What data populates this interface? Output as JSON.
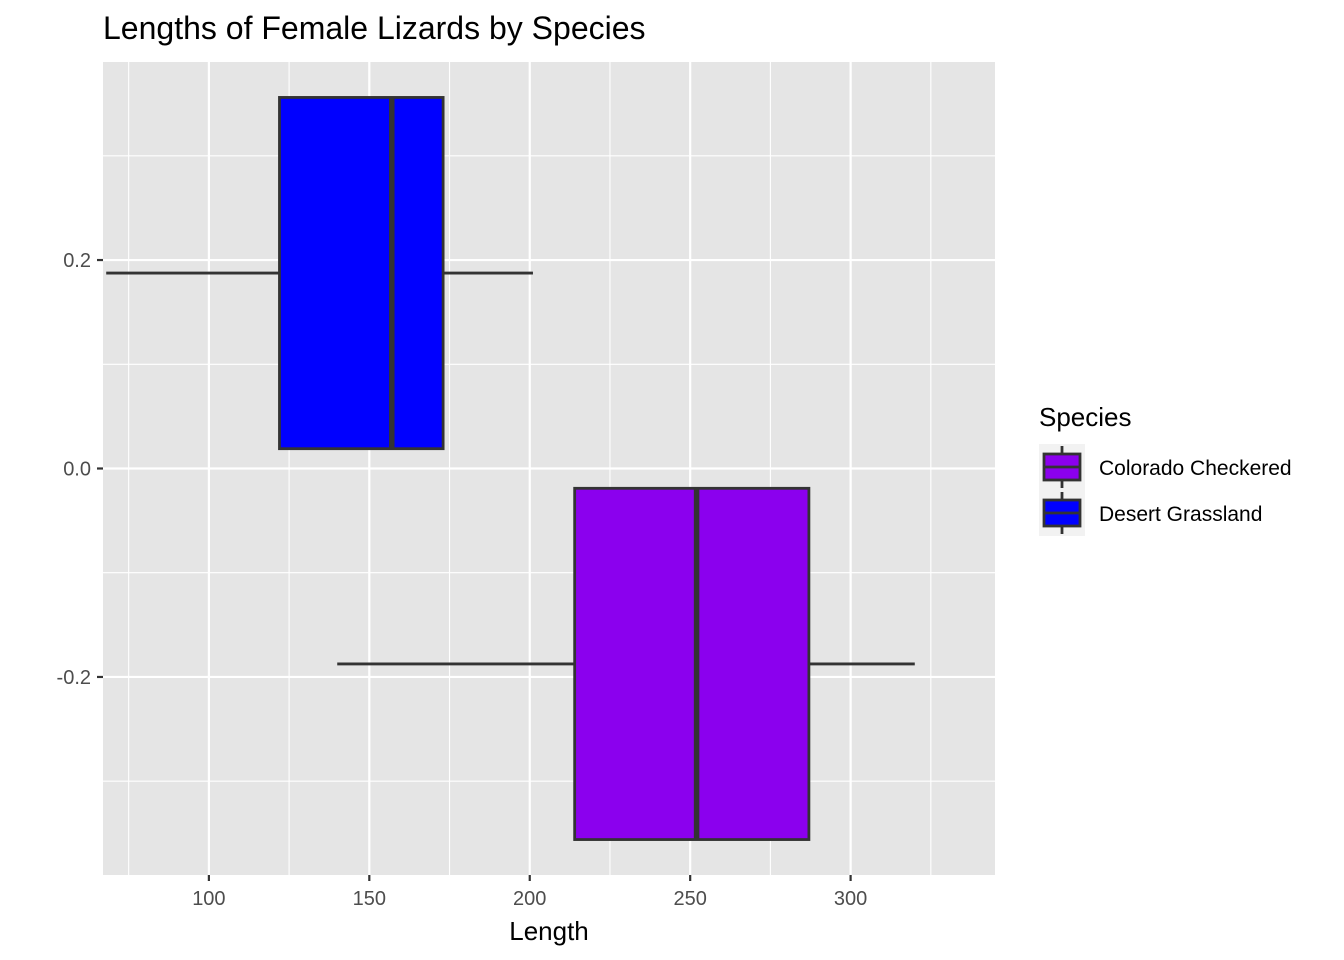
{
  "chart_data": {
    "type": "boxplot",
    "orientation": "horizontal",
    "title": "Lengths of Female Lizards by Species",
    "xlabel": "Length",
    "ylabel": "",
    "xlim": [
      67,
      345
    ],
    "ylim": [
      -0.39,
      0.39
    ],
    "x_ticks": [
      100,
      150,
      200,
      250,
      300
    ],
    "x_tick_labels": [
      "100",
      "150",
      "200",
      "250",
      "300"
    ],
    "y_ticks": [
      -0.2,
      0.0,
      0.2
    ],
    "y_tick_labels": [
      "-0.2",
      "0.0",
      "0.2"
    ],
    "grid": true,
    "legend": {
      "title": "Species",
      "position": "right",
      "entries": [
        "Colorado Checkered",
        "Desert Grassland"
      ]
    },
    "series": [
      {
        "name": "Desert Grassland",
        "color": "#0000FF",
        "y_center": 0.1875,
        "y_bottom": 0.019,
        "y_top": 0.356,
        "whisker_low": 68,
        "q1": 122,
        "median": 157,
        "q3": 173,
        "whisker_high": 201
      },
      {
        "name": "Colorado Checkered",
        "color": "#8B00EE",
        "y_center": -0.1875,
        "y_bottom": -0.356,
        "y_top": -0.019,
        "whisker_low": 140,
        "q1": 214,
        "median": 252,
        "q3": 287,
        "whisker_high": 320
      }
    ]
  }
}
